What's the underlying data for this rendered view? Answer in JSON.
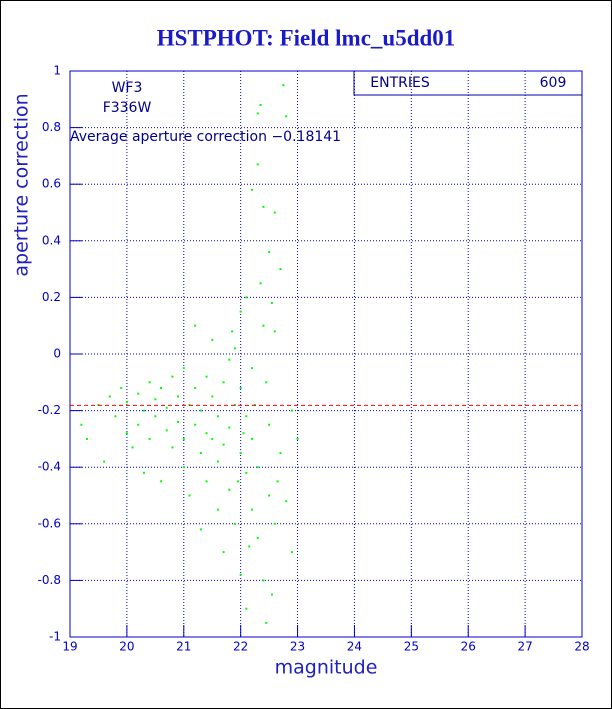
{
  "chart_data": {
    "type": "scatter",
    "title": "HSTPHOT: Field lmc_u5dd01",
    "x_label": "magnitude",
    "y_label": "aperture correction",
    "labels": [
      "WF3",
      "F336W"
    ],
    "annotation": "Average aperture correction −0.18141",
    "average": -0.18141,
    "average_color": "#ff0000",
    "stats": {
      "name": "ENTRIES",
      "value": 609
    },
    "color": "#00ff00",
    "grid": true,
    "xlim": [
      19,
      28
    ],
    "ylim": [
      -1,
      1
    ],
    "xticks": [
      19,
      20,
      21,
      22,
      23,
      24,
      25,
      26,
      27,
      28
    ],
    "yticks": [
      -1,
      -0.8,
      -0.6,
      -0.4,
      -0.2,
      0,
      0.2,
      0.4,
      0.6,
      0.8,
      1
    ],
    "x": [
      19.2,
      19.3,
      19.5,
      19.6,
      19.7,
      19.8,
      19.9,
      20.0,
      20.0,
      20.1,
      20.2,
      20.2,
      20.3,
      20.3,
      20.4,
      20.4,
      20.5,
      20.5,
      20.6,
      20.6,
      20.7,
      20.7,
      20.8,
      20.8,
      20.9,
      20.9,
      21.0,
      21.0,
      21.0,
      21.1,
      21.1,
      21.2,
      21.2,
      21.2,
      21.3,
      21.3,
      21.3,
      21.4,
      21.4,
      21.4,
      21.5,
      21.5,
      21.5,
      21.6,
      21.6,
      21.6,
      21.7,
      21.7,
      21.7,
      21.8,
      21.8,
      21.8,
      21.9,
      21.9,
      21.9,
      22.0,
      22.0,
      22.0,
      22.0,
      22.1,
      22.1,
      22.1,
      22.1,
      22.2,
      22.2,
      22.2,
      22.2,
      22.3,
      22.3,
      22.3,
      22.3,
      22.4,
      22.4,
      22.4,
      22.5,
      22.5,
      22.5,
      22.6,
      22.6,
      22.6,
      22.7,
      22.7,
      22.8,
      22.8,
      22.9,
      22.9,
      23.0,
      22.75,
      22.35,
      22.45,
      22.55,
      22.65,
      22.25,
      21.95,
      21.85,
      22.05,
      22.15,
      22.35,
      22.45,
      22.55
    ],
    "values": [
      -0.25,
      -0.3,
      -0.18,
      -0.38,
      -0.15,
      -0.22,
      -0.12,
      -0.28,
      -0.17,
      -0.33,
      -0.14,
      -0.25,
      -0.42,
      -0.2,
      -0.1,
      -0.3,
      -0.16,
      -0.22,
      -0.45,
      -0.12,
      -0.27,
      -0.19,
      -0.08,
      -0.33,
      -0.24,
      -0.15,
      -0.3,
      -0.05,
      -0.4,
      -0.18,
      -0.5,
      -0.25,
      0.1,
      -0.12,
      -0.35,
      -0.2,
      -0.62,
      -0.28,
      -0.08,
      -0.45,
      -0.15,
      -0.3,
      0.05,
      -0.38,
      -0.22,
      -0.55,
      -0.1,
      -0.32,
      -0.7,
      -0.02,
      -0.26,
      -0.48,
      -0.18,
      -0.6,
      0.02,
      -0.35,
      -0.12,
      -0.78,
      0.15,
      -0.42,
      -0.22,
      -0.9,
      0.2,
      -0.55,
      0.58,
      -0.3,
      -0.05,
      0.85,
      -0.65,
      0.67,
      -0.4,
      0.1,
      -0.8,
      0.52,
      -0.25,
      -0.5,
      0.36,
      -0.6,
      0.08,
      0.5,
      -0.35,
      0.3,
      -0.52,
      0.84,
      -0.7,
      -0.2,
      -0.3,
      0.95,
      0.88,
      -0.95,
      -0.85,
      -0.45,
      -0.18,
      -0.45,
      0.08,
      -0.28,
      -0.68,
      0.25,
      -0.1,
      0.18
    ]
  }
}
